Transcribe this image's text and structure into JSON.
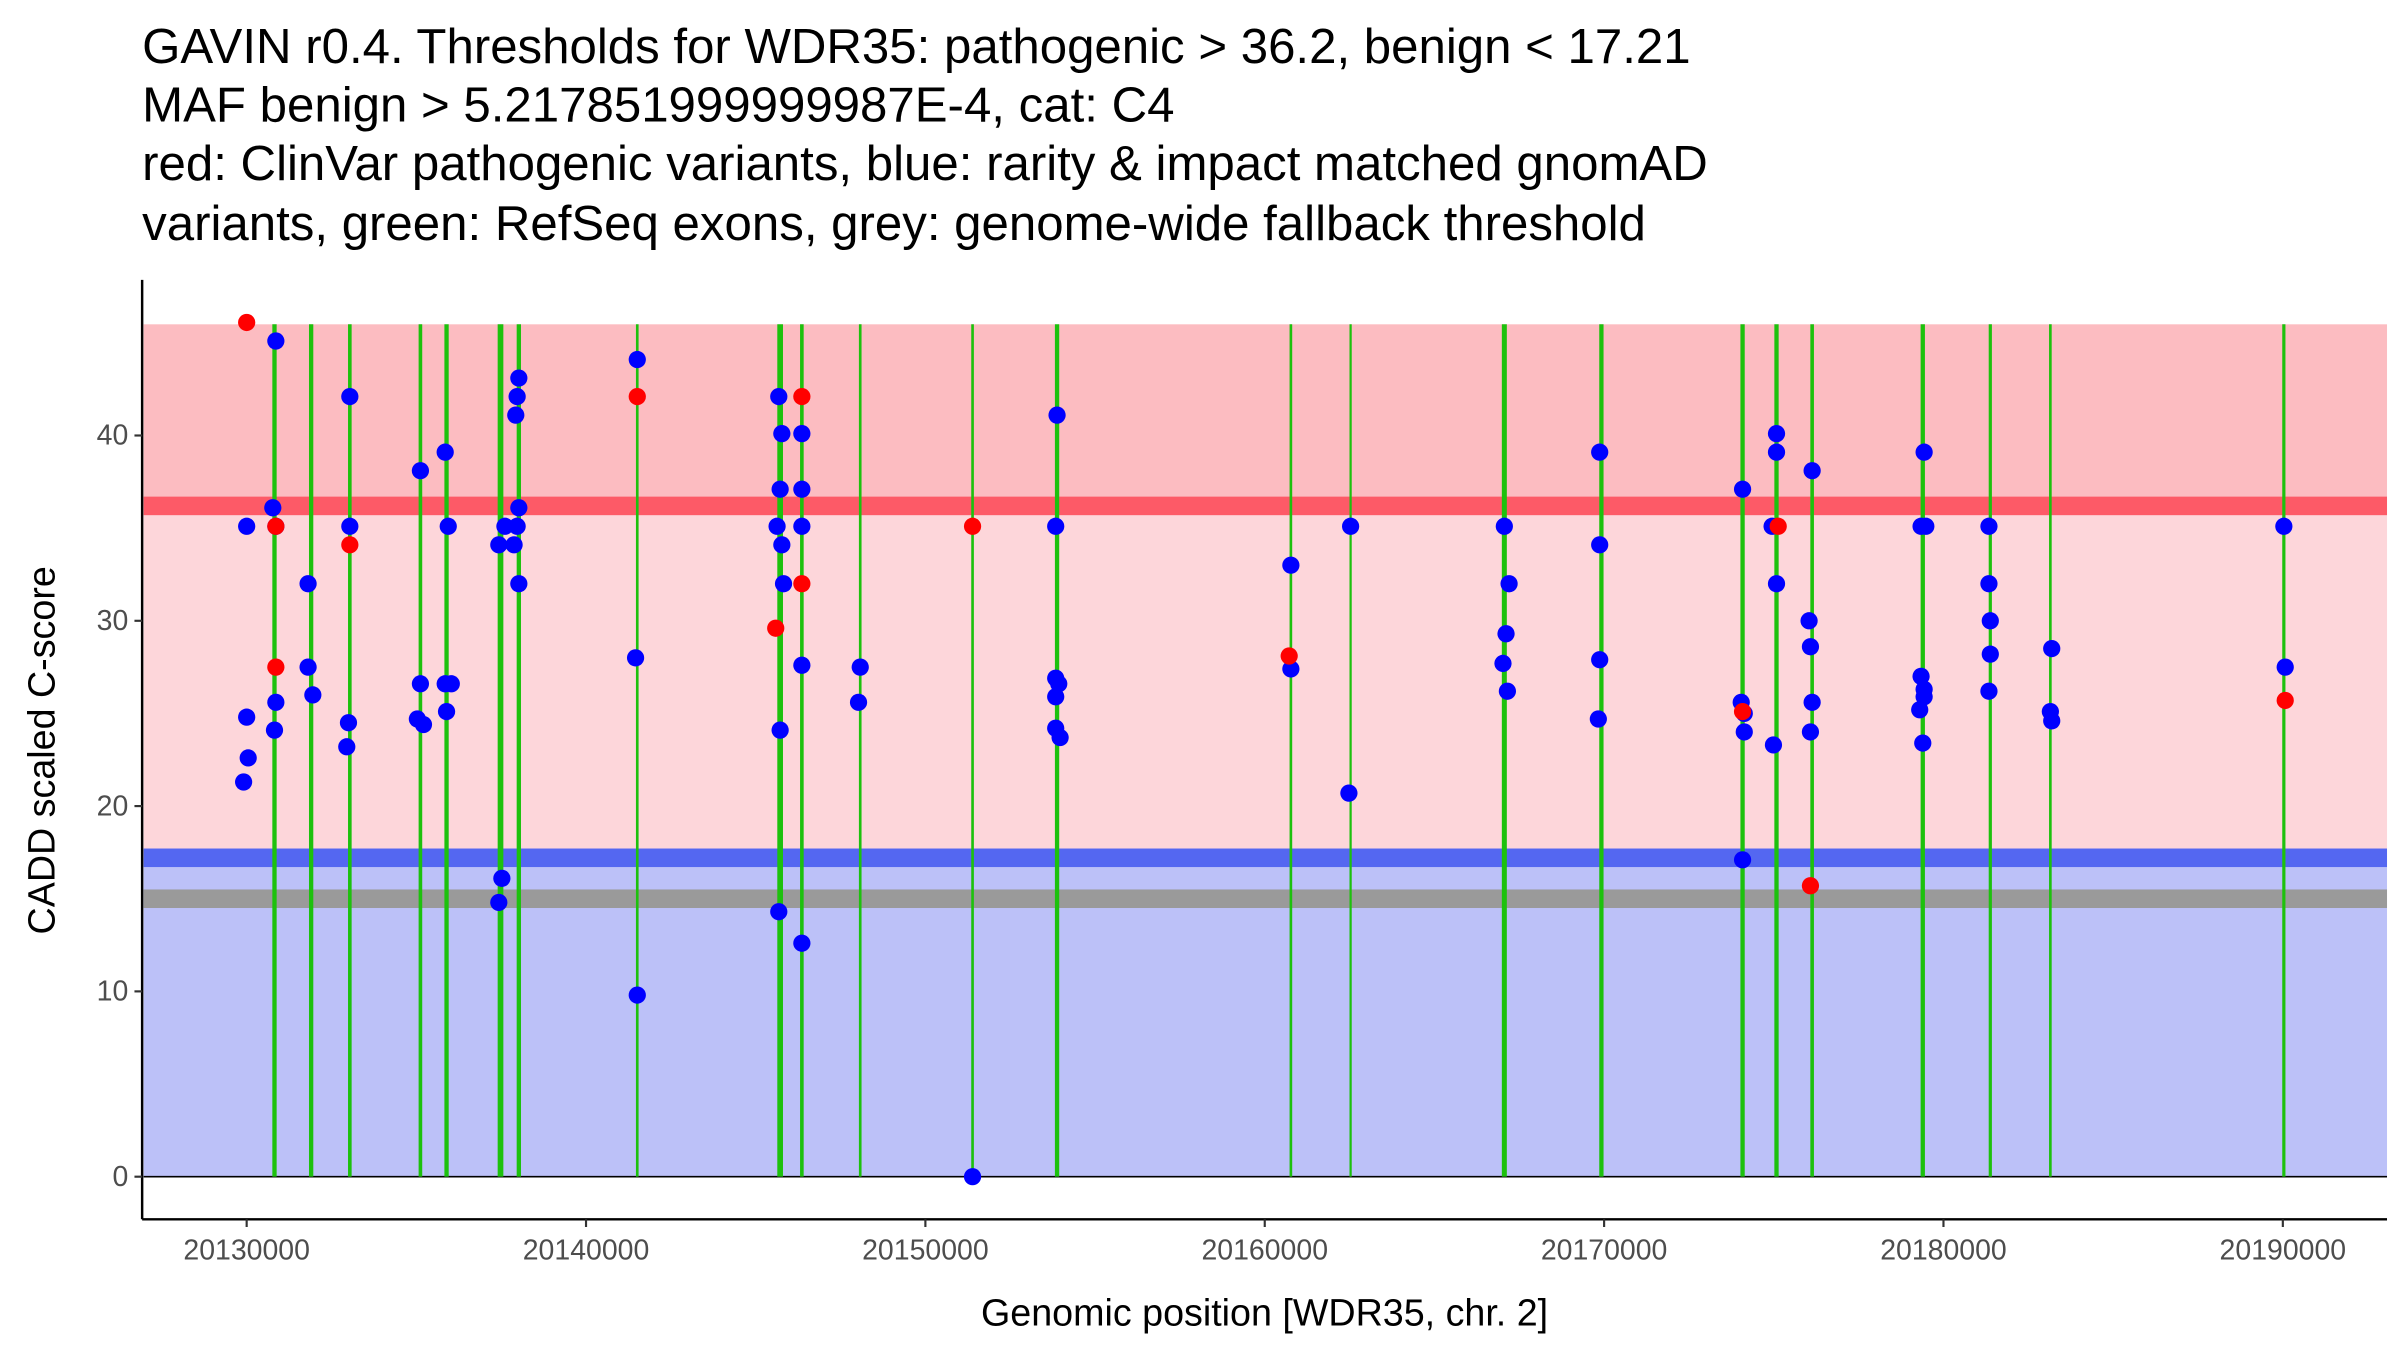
{
  "chart_data": {
    "type": "scatter",
    "title_lines": [
      "GAVIN r0.4. Thresholds for WDR35: pathogenic > 36.2, benign < 17.21",
      "MAF benign > 5.217851999999987E-4, cat: C4",
      "red: ClinVar pathogenic variants, blue: rarity & impact matched gnomAD",
      "variants, green: RefSeq exons, grey: genome-wide fallback threshold"
    ],
    "xlabel": "Genomic position [WDR35, chr. 2]",
    "ylabel": "CADD scaled C-score",
    "xlim": [
      20126920,
      20193070
    ],
    "ylim": [
      -2.3,
      48.4
    ],
    "x_ticks": [
      20130000,
      20140000,
      20150000,
      20160000,
      20170000,
      20180000,
      20190000
    ],
    "x_tick_labels": [
      "20130000",
      "20140000",
      "20150000",
      "20160000",
      "20170000",
      "20180000",
      "20190000"
    ],
    "y_ticks": [
      0,
      10,
      20,
      30,
      40
    ],
    "y_tick_labels": [
      "0",
      "10",
      "20",
      "30",
      "40"
    ],
    "grid": false,
    "legend": "none",
    "thresholds": {
      "pathogenic": 36.2,
      "benign": 17.21,
      "genome_wide_fallback": 15.0,
      "zone_top": 46.0
    },
    "colors": {
      "pathogenic_zone": "#fcbcc1",
      "pathogenic_line": "#fd5a67",
      "middle_zone": "#fdd6da",
      "benign_line": "#5467f1",
      "benign_zone": "#bcc1f8",
      "fallback_line": "#9a9a9a",
      "exon": "#1dc10d",
      "clinvar": "#ff0000",
      "gnomad": "#0000ff"
    },
    "exons": [
      {
        "pos": 20130820,
        "weight": 2
      },
      {
        "pos": 20131900,
        "weight": 2
      },
      {
        "pos": 20133040,
        "weight": 1.5
      },
      {
        "pos": 20135120,
        "weight": 1.5
      },
      {
        "pos": 20135890,
        "weight": 2
      },
      {
        "pos": 20137480,
        "weight": 3
      },
      {
        "pos": 20138020,
        "weight": 2
      },
      {
        "pos": 20141510,
        "weight": 0.8
      },
      {
        "pos": 20145720,
        "weight": 3
      },
      {
        "pos": 20146360,
        "weight": 1.5
      },
      {
        "pos": 20148080,
        "weight": 0.8
      },
      {
        "pos": 20151390,
        "weight": 0.8
      },
      {
        "pos": 20153880,
        "weight": 2
      },
      {
        "pos": 20160770,
        "weight": 0.8
      },
      {
        "pos": 20162530,
        "weight": 0.5
      },
      {
        "pos": 20167060,
        "weight": 2.5
      },
      {
        "pos": 20169920,
        "weight": 2
      },
      {
        "pos": 20174080,
        "weight": 2
      },
      {
        "pos": 20175080,
        "weight": 2
      },
      {
        "pos": 20176130,
        "weight": 1.5
      },
      {
        "pos": 20179390,
        "weight": 2
      },
      {
        "pos": 20181380,
        "weight": 1.2
      },
      {
        "pos": 20183150,
        "weight": 0.8
      },
      {
        "pos": 20190030,
        "weight": 1.2
      }
    ],
    "series": [
      {
        "name": "rarity & impact matched gnomAD variants",
        "color": "#0000ff",
        "points": [
          [
            20130000,
            35.1
          ],
          [
            20130000,
            24.8
          ],
          [
            20130045,
            22.6
          ],
          [
            20129910,
            21.3
          ],
          [
            20130860,
            45.1
          ],
          [
            20130770,
            36.1
          ],
          [
            20130860,
            35.1
          ],
          [
            20130860,
            25.6
          ],
          [
            20130820,
            24.1
          ],
          [
            20131810,
            32.0
          ],
          [
            20131810,
            27.5
          ],
          [
            20131950,
            26.0
          ],
          [
            20133040,
            42.1
          ],
          [
            20133040,
            35.1
          ],
          [
            20133000,
            24.5
          ],
          [
            20132950,
            23.2
          ],
          [
            20135120,
            38.1
          ],
          [
            20135120,
            26.6
          ],
          [
            20135030,
            24.7
          ],
          [
            20135210,
            24.4
          ],
          [
            20135850,
            39.1
          ],
          [
            20135940,
            35.1
          ],
          [
            20135850,
            26.6
          ],
          [
            20136030,
            26.6
          ],
          [
            20135890,
            25.1
          ],
          [
            20137430,
            34.1
          ],
          [
            20137610,
            35.1
          ],
          [
            20137520,
            16.1
          ],
          [
            20137430,
            14.8
          ],
          [
            20138020,
            43.1
          ],
          [
            20137970,
            42.1
          ],
          [
            20137930,
            41.1
          ],
          [
            20138020,
            36.1
          ],
          [
            20137970,
            35.1
          ],
          [
            20137880,
            34.1
          ],
          [
            20138020,
            32.0
          ],
          [
            20141510,
            44.1
          ],
          [
            20141460,
            28.0
          ],
          [
            20141510,
            9.8
          ],
          [
            20145680,
            42.1
          ],
          [
            20145770,
            40.1
          ],
          [
            20145720,
            37.1
          ],
          [
            20145630,
            35.1
          ],
          [
            20145770,
            34.1
          ],
          [
            20145820,
            32.0
          ],
          [
            20145720,
            24.1
          ],
          [
            20145680,
            14.3
          ],
          [
            20146360,
            40.1
          ],
          [
            20146360,
            37.1
          ],
          [
            20146360,
            35.1
          ],
          [
            20146360,
            27.6
          ],
          [
            20146360,
            12.6
          ],
          [
            20148080,
            27.5
          ],
          [
            20148030,
            25.6
          ],
          [
            20151390,
            0.0
          ],
          [
            20153880,
            41.1
          ],
          [
            20153840,
            35.1
          ],
          [
            20153840,
            26.9
          ],
          [
            20153930,
            26.6
          ],
          [
            20153840,
            25.9
          ],
          [
            20153840,
            24.2
          ],
          [
            20153970,
            23.7
          ],
          [
            20160770,
            33.0
          ],
          [
            20160770,
            27.4
          ],
          [
            20162530,
            35.1
          ],
          [
            20162480,
            20.7
          ],
          [
            20167060,
            35.1
          ],
          [
            20167200,
            32.0
          ],
          [
            20167110,
            29.3
          ],
          [
            20167020,
            27.7
          ],
          [
            20167150,
            26.2
          ],
          [
            20169870,
            39.1
          ],
          [
            20169870,
            34.1
          ],
          [
            20169870,
            27.9
          ],
          [
            20169830,
            24.7
          ],
          [
            20174080,
            37.1
          ],
          [
            20174040,
            25.6
          ],
          [
            20174130,
            25.0
          ],
          [
            20174130,
            24.0
          ],
          [
            20174080,
            17.1
          ],
          [
            20175080,
            40.1
          ],
          [
            20175080,
            39.1
          ],
          [
            20174950,
            35.1
          ],
          [
            20175080,
            32.0
          ],
          [
            20174990,
            23.3
          ],
          [
            20176130,
            38.1
          ],
          [
            20176040,
            30.0
          ],
          [
            20176080,
            28.6
          ],
          [
            20176130,
            25.6
          ],
          [
            20176080,
            24.0
          ],
          [
            20179430,
            39.1
          ],
          [
            20179340,
            35.1
          ],
          [
            20179480,
            35.1
          ],
          [
            20179340,
            27.0
          ],
          [
            20179430,
            26.3
          ],
          [
            20179430,
            25.9
          ],
          [
            20179300,
            25.2
          ],
          [
            20179390,
            23.4
          ],
          [
            20181340,
            35.1
          ],
          [
            20181340,
            32.0
          ],
          [
            20181380,
            30.0
          ],
          [
            20181380,
            28.2
          ],
          [
            20181340,
            26.2
          ],
          [
            20183190,
            28.5
          ],
          [
            20183150,
            25.1
          ],
          [
            20183190,
            24.6
          ],
          [
            20190030,
            35.1
          ],
          [
            20190070,
            27.5
          ]
        ]
      },
      {
        "name": "ClinVar pathogenic variants",
        "color": "#ff0000",
        "points": [
          [
            20130000,
            46.1
          ],
          [
            20130860,
            35.1
          ],
          [
            20130860,
            27.5
          ],
          [
            20133040,
            34.1
          ],
          [
            20141510,
            42.1
          ],
          [
            20145590,
            29.6
          ],
          [
            20146360,
            42.1
          ],
          [
            20146360,
            32.0
          ],
          [
            20151390,
            35.1
          ],
          [
            20160720,
            28.1
          ],
          [
            20174080,
            25.1
          ],
          [
            20175130,
            35.1
          ],
          [
            20176080,
            15.7
          ],
          [
            20190070,
            25.7
          ]
        ]
      }
    ]
  }
}
